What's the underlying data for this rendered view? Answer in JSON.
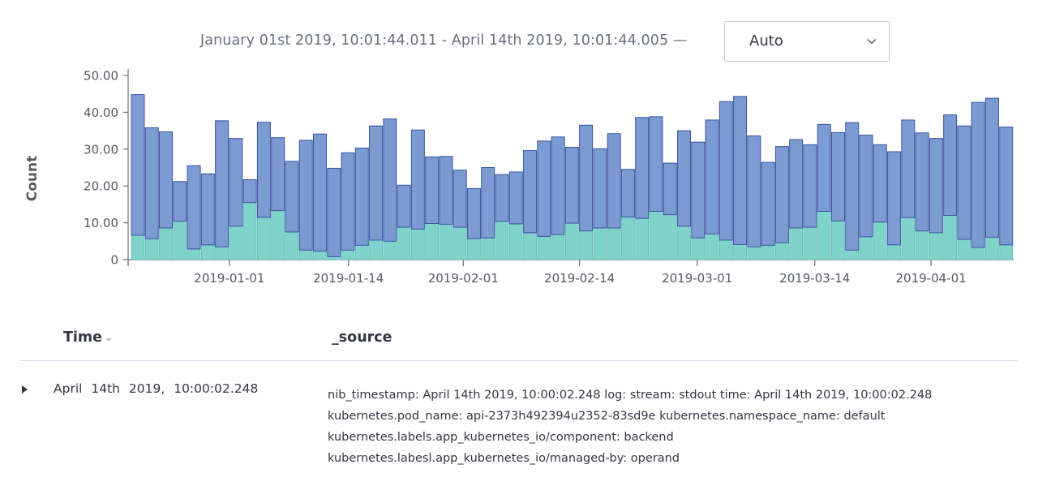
{
  "header": {
    "time_range": "January 01st 2019, 10:01:44.011 - April 14th 2019, 10:01:44.005 —",
    "interval": {
      "selected": "Auto"
    }
  },
  "chart_data": {
    "type": "bar",
    "stacked": true,
    "ylabel": "Count",
    "ylim": [
      0,
      50
    ],
    "yticks": [
      "0",
      "10.00",
      "20.00",
      "30.00",
      "40.00",
      "50.00"
    ],
    "xticks": [
      "2019-01-01",
      "2019-01-14",
      "2019-02-01",
      "2019-02-14",
      "2019-03-01",
      "2019-03-14",
      "2019-04-01"
    ],
    "xtick_bar_index": [
      7,
      15.5,
      23.7,
      32,
      40.4,
      48.8,
      57.1
    ],
    "grid": false,
    "colors": {
      "top": "#7b9bd1",
      "bottom": "#7fd3cb",
      "stroke": "#3b54a4"
    },
    "series": [
      {
        "name": "bottom",
        "values": [
          6.6,
          5.7,
          8.6,
          10.4,
          2.9,
          4.0,
          3.5,
          9.1,
          15.5,
          11.5,
          13.3,
          7.5,
          2.6,
          2.3,
          0.8,
          2.6,
          3.9,
          5.3,
          5.0,
          8.8,
          8.3,
          9.8,
          9.6,
          8.8,
          5.7,
          5.9,
          10.4,
          9.7,
          7.3,
          6.3,
          6.8,
          9.9,
          7.8,
          8.6,
          8.6,
          11.6,
          11.2,
          13.1,
          12.2,
          9.1,
          5.9,
          7.0,
          5.3,
          4.1,
          3.5,
          3.9,
          4.6,
          8.6,
          8.8,
          13.1,
          10.5,
          2.6,
          6.2,
          10.2,
          4.0,
          11.4,
          7.8,
          7.3,
          12.0,
          5.5,
          3.3,
          6.1,
          4.0
        ]
      },
      {
        "name": "top",
        "values": [
          38.2,
          30.1,
          26.1,
          10.8,
          22.6,
          19.3,
          34.2,
          23.8,
          6.2,
          25.8,
          19.8,
          19.2,
          29.8,
          31.8,
          24.0,
          26.4,
          26.4,
          31.0,
          33.2,
          11.4,
          26.9,
          18.1,
          18.4,
          15.5,
          13.6,
          19.1,
          12.7,
          14.1,
          22.3,
          25.9,
          26.5,
          20.6,
          28.7,
          21.5,
          25.6,
          12.9,
          27.4,
          25.7,
          14.0,
          25.9,
          26.0,
          30.9,
          37.6,
          40.2,
          30.1,
          22.5,
          26.1,
          24.0,
          22.4,
          23.6,
          24.0,
          34.6,
          27.6,
          21.0,
          25.3,
          26.5,
          26.6,
          25.6,
          27.3,
          30.8,
          39.4,
          37.7,
          32.0
        ]
      }
    ]
  },
  "table": {
    "columns": {
      "time": "Time",
      "source": "_source"
    },
    "rows": [
      {
        "time": "April 14th 2019, 10:00:02.248",
        "source_lines": [
          "nib_timestamp: April 14th 2019, 10:00:02.248 log:   stream: stdout   time: April 14th 2019, 10:00:02.248",
          "kubernetes.pod_name: api-2373h492394u2352-83sd9e kubernetes.namespace_name: default",
          "kubernetes.labels.app_kubernetes_io/component: backend",
          "kubernetes.labesl.app_kubernetes_io/managed-by: operand"
        ]
      }
    ]
  }
}
